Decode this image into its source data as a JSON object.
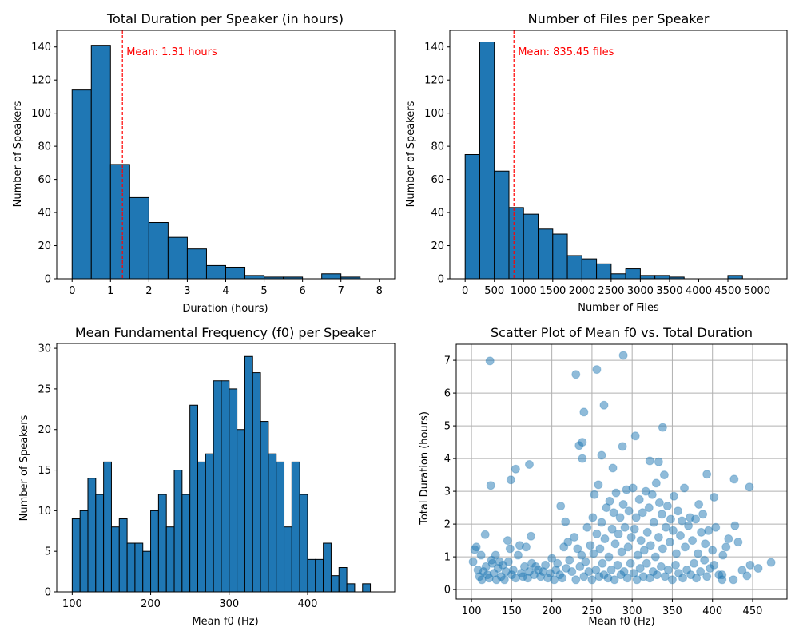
{
  "chart_data": [
    {
      "type": "bar",
      "subtype": "histogram",
      "title": "Total Duration per Speaker (in hours)",
      "xlabel": "Duration (hours)",
      "ylabel": "Number of Speakers",
      "bins": {
        "start": 0,
        "width": 0.5
      },
      "values": [
        114,
        141,
        69,
        49,
        34,
        25,
        18,
        8,
        7,
        2,
        1,
        1,
        0,
        3,
        1,
        0
      ],
      "xlim": [
        -0.4,
        8.4
      ],
      "ylim": [
        0,
        150
      ],
      "xticks": [
        0,
        1,
        2,
        3,
        4,
        5,
        6,
        7,
        8
      ],
      "yticks": [
        0,
        20,
        40,
        60,
        80,
        100,
        120,
        140
      ],
      "mean": {
        "value": 1.31,
        "label": "Mean: 1.31 hours",
        "color": "#ff0000"
      },
      "bar_color": "#1f77b4",
      "grid": false
    },
    {
      "type": "bar",
      "subtype": "histogram",
      "title": "Number of Files per Speaker",
      "xlabel": "Number of Files",
      "ylabel": "Number of Speakers",
      "bins": {
        "start": 0,
        "width": 250
      },
      "values": [
        75,
        143,
        65,
        43,
        39,
        30,
        27,
        14,
        12,
        9,
        3,
        6,
        2,
        2,
        1,
        0,
        0,
        0,
        2,
        0,
        0
      ],
      "xlim": [
        -262.5,
        5512.5
      ],
      "ylim": [
        0,
        150
      ],
      "xticks": [
        0,
        500,
        1000,
        1500,
        2000,
        2500,
        3000,
        3500,
        4000,
        4500,
        5000
      ],
      "yticks": [
        0,
        20,
        40,
        60,
        80,
        100,
        120,
        140
      ],
      "mean": {
        "value": 835.45,
        "label": "Mean: 835.45 files",
        "color": "#ff0000"
      },
      "bar_color": "#1f77b4",
      "grid": false
    },
    {
      "type": "bar",
      "subtype": "histogram",
      "title": "Mean Fundamental Frequency (f0) per Speaker",
      "xlabel": "Mean f0 (Hz)",
      "ylabel": "Number of Speakers",
      "bins": {
        "start": 100,
        "width": 10
      },
      "values": [
        9,
        10,
        14,
        12,
        16,
        8,
        9,
        6,
        6,
        5,
        10,
        12,
        8,
        15,
        12,
        23,
        16,
        17,
        26,
        26,
        25,
        20,
        29,
        27,
        21,
        17,
        16,
        8,
        16,
        12,
        4,
        4,
        6,
        2,
        3,
        1,
        0,
        1,
        0
      ],
      "xlim": [
        80.3,
        511
      ],
      "ylim": [
        0,
        30.6
      ],
      "xticks": [
        100,
        200,
        300,
        400
      ],
      "yticks": [
        0,
        5,
        10,
        15,
        20,
        25,
        30
      ],
      "bar_color": "#1f77b4",
      "grid": false
    },
    {
      "type": "scatter",
      "title": "Scatter Plot of Mean f0 vs. Total Duration",
      "xlabel": "Mean f0 (Hz)",
      "ylabel": "Total Duration (hours)",
      "xlim": [
        81,
        492.8
      ],
      "ylim": [
        -0.29,
        7.49
      ],
      "xticks": [
        100,
        150,
        200,
        250,
        300,
        350,
        400,
        450
      ],
      "yticks": [
        0,
        1,
        2,
        3,
        4,
        5,
        6,
        7
      ],
      "grid": true,
      "point_color": "#1f77b4",
      "alpha": 0.5,
      "points": [
        [
          123,
          6.98
        ],
        [
          230,
          6.57
        ],
        [
          256,
          6.72
        ],
        [
          289,
          7.15
        ],
        [
          240,
          5.42
        ],
        [
          265,
          5.63
        ],
        [
          234,
          4.4
        ],
        [
          238,
          4.5
        ],
        [
          288,
          4.37
        ],
        [
          304,
          4.69
        ],
        [
          238,
          4.0
        ],
        [
          262,
          4.1
        ],
        [
          338,
          4.95
        ],
        [
          322,
          3.93
        ],
        [
          333,
          3.9
        ],
        [
          155,
          3.68
        ],
        [
          172,
          3.82
        ],
        [
          149,
          3.35
        ],
        [
          124,
          3.18
        ],
        [
          276,
          3.71
        ],
        [
          393,
          3.52
        ],
        [
          446,
          3.13
        ],
        [
          427,
          3.37
        ],
        [
          402,
          2.82
        ],
        [
          211,
          2.55
        ],
        [
          217,
          2.07
        ],
        [
          117,
          1.68
        ],
        [
          174,
          1.63
        ],
        [
          473,
          0.83
        ],
        [
          457,
          0.65
        ],
        [
          447,
          0.75
        ],
        [
          437,
          0.59
        ],
        [
          443,
          0.42
        ],
        [
          426,
          0.3
        ],
        [
          412,
          0.3
        ],
        [
          412,
          0.45
        ],
        [
          102,
          0.85
        ],
        [
          104,
          1.22
        ],
        [
          106,
          1.3
        ],
        [
          108,
          0.6
        ],
        [
          110,
          0.4
        ],
        [
          112,
          1.05
        ],
        [
          113,
          0.3
        ],
        [
          115,
          0.55
        ],
        [
          118,
          0.7
        ],
        [
          120,
          0.45
        ],
        [
          122,
          0.35
        ],
        [
          125,
          0.9
        ],
        [
          126,
          0.8
        ],
        [
          128,
          0.5
        ],
        [
          130,
          1.05
        ],
        [
          131,
          0.3
        ],
        [
          133,
          0.65
        ],
        [
          135,
          0.85
        ],
        [
          137,
          0.4
        ],
        [
          139,
          0.75
        ],
        [
          141,
          0.3
        ],
        [
          143,
          0.55
        ],
        [
          145,
          1.5
        ],
        [
          146,
          0.85
        ],
        [
          148,
          1.25
        ],
        [
          150,
          0.45
        ],
        [
          152,
          0.6
        ],
        [
          155,
          0.35
        ],
        [
          158,
          1.05
        ],
        [
          160,
          1.35
        ],
        [
          162,
          0.5
        ],
        [
          164,
          0.4
        ],
        [
          166,
          0.7
        ],
        [
          168,
          1.3
        ],
        [
          170,
          0.35
        ],
        [
          172,
          0.55
        ],
        [
          175,
          0.8
        ],
        [
          178,
          0.45
        ],
        [
          180,
          0.7
        ],
        [
          183,
          0.6
        ],
        [
          186,
          0.4
        ],
        [
          189,
          0.55
        ],
        [
          192,
          0.75
        ],
        [
          195,
          0.35
        ],
        [
          198,
          0.5
        ],
        [
          200,
          0.95
        ],
        [
          203,
          0.3
        ],
        [
          205,
          0.6
        ],
        [
          207,
          0.8
        ],
        [
          210,
          0.45
        ],
        [
          213,
          0.35
        ],
        [
          215,
          1.3
        ],
        [
          218,
          0.65
        ],
        [
          220,
          1.45
        ],
        [
          222,
          0.9
        ],
        [
          225,
          0.55
        ],
        [
          228,
          1.6
        ],
        [
          230,
          0.3
        ],
        [
          232,
          1.25
        ],
        [
          235,
          0.7
        ],
        [
          237,
          1.05
        ],
        [
          240,
          0.4
        ],
        [
          242,
          0.85
        ],
        [
          244,
          1.9
        ],
        [
          246,
          0.55
        ],
        [
          248,
          1.35
        ],
        [
          250,
          0.3
        ],
        [
          251,
          2.2
        ],
        [
          252,
          1.1
        ],
        [
          253,
          2.9
        ],
        [
          255,
          0.6
        ],
        [
          256,
          1.7
        ],
        [
          258,
          3.2
        ],
        [
          259,
          0.4
        ],
        [
          260,
          1.25
        ],
        [
          262,
          2.05
        ],
        [
          263,
          0.8
        ],
        [
          265,
          0.45
        ],
        [
          266,
          1.55
        ],
        [
          268,
          2.5
        ],
        [
          270,
          0.35
        ],
        [
          271,
          1.0
        ],
        [
          272,
          2.7
        ],
        [
          274,
          0.6
        ],
        [
          275,
          1.85
        ],
        [
          277,
          2.35
        ],
        [
          278,
          0.3
        ],
        [
          279,
          1.4
        ],
        [
          280,
          2.95
        ],
        [
          282,
          0.75
        ],
        [
          283,
          1.7
        ],
        [
          285,
          2.2
        ],
        [
          286,
          0.45
        ],
        [
          287,
          1.15
        ],
        [
          289,
          2.6
        ],
        [
          290,
          0.55
        ],
        [
          291,
          1.9
        ],
        [
          293,
          3.05
        ],
        [
          294,
          0.35
        ],
        [
          295,
          1.3
        ],
        [
          296,
          2.4
        ],
        [
          298,
          0.8
        ],
        [
          299,
          1.6
        ],
        [
          301,
          3.1
        ],
        [
          302,
          0.5
        ],
        [
          303,
          1.85
        ],
        [
          305,
          2.2
        ],
        [
          306,
          0.3
        ],
        [
          307,
          1.05
        ],
        [
          309,
          2.75
        ],
        [
          310,
          0.65
        ],
        [
          311,
          1.5
        ],
        [
          313,
          2.35
        ],
        [
          314,
          0.4
        ],
        [
          315,
          1.2
        ],
        [
          317,
          3.0
        ],
        [
          318,
          0.8
        ],
        [
          319,
          1.75
        ],
        [
          321,
          2.5
        ],
        [
          322,
          0.35
        ],
        [
          323,
          1.35
        ],
        [
          325,
          2.9
        ],
        [
          326,
          0.55
        ],
        [
          327,
          2.05
        ],
        [
          329,
          1.0
        ],
        [
          330,
          3.25
        ],
        [
          331,
          0.45
        ],
        [
          333,
          1.6
        ],
        [
          334,
          2.65
        ],
        [
          336,
          0.7
        ],
        [
          337,
          2.3
        ],
        [
          338,
          1.25
        ],
        [
          340,
          3.5
        ],
        [
          341,
          0.4
        ],
        [
          342,
          1.9
        ],
        [
          344,
          2.55
        ],
        [
          345,
          0.6
        ],
        [
          347,
          1.45
        ],
        [
          348,
          2.15
        ],
        [
          350,
          0.3
        ],
        [
          351,
          1.8
        ],
        [
          352,
          2.85
        ],
        [
          354,
          0.75
        ],
        [
          355,
          1.1
        ],
        [
          357,
          2.4
        ],
        [
          358,
          0.5
        ],
        [
          360,
          1.65
        ],
        [
          362,
          2.1
        ],
        [
          363,
          0.35
        ],
        [
          365,
          3.1
        ],
        [
          366,
          1.3
        ],
        [
          368,
          0.6
        ],
        [
          370,
          1.95
        ],
        [
          372,
          2.2
        ],
        [
          373,
          0.45
        ],
        [
          375,
          1.5
        ],
        [
          377,
          0.8
        ],
        [
          379,
          2.15
        ],
        [
          380,
          0.35
        ],
        [
          382,
          1.1
        ],
        [
          383,
          2.6
        ],
        [
          385,
          0.55
        ],
        [
          386,
          1.75
        ],
        [
          388,
          2.3
        ],
        [
          390,
          0.9
        ],
        [
          391,
          1.4
        ],
        [
          393,
          0.4
        ],
        [
          395,
          1.8
        ],
        [
          397,
          0.65
        ],
        [
          400,
          1.2
        ],
        [
          402,
          0.75
        ],
        [
          404,
          1.9
        ],
        [
          408,
          0.45
        ],
        [
          413,
          1.05
        ],
        [
          417,
          1.3
        ],
        [
          420,
          1.55
        ],
        [
          428,
          1.95
        ],
        [
          432,
          1.45
        ]
      ]
    }
  ]
}
